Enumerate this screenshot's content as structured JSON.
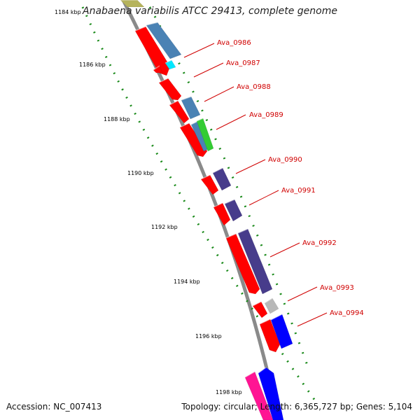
{
  "title": "Anabaena variabilis ATCC 29413, complete genome",
  "accession_text": "Accession: NC_007413",
  "topology_text": "Topology: circular; Length: 6,365,727 bp; Genes: 5,104",
  "colors": {
    "backbone": "#8a8a8a",
    "ticks": "#1a8a1a",
    "label": "#d00000",
    "red": "#ff0000",
    "steel": "#4a82b4",
    "cyan": "#00e8ff",
    "green": "#33cc33",
    "purple": "#473c8b",
    "gray": "#b8b8b8",
    "blue": "#0000ff",
    "pink": "#ff1493",
    "olive": "#b5b35c"
  },
  "scale_labels": [
    "1184 kbp",
    "1186 kbp",
    "1188 kbp",
    "1190 kbp",
    "1192 kbp",
    "1194 kbp",
    "1196 kbp",
    "1198 kbp"
  ],
  "gene_labels": [
    "Ava_0986",
    "Ava_0987",
    "Ava_0988",
    "Ava_0989",
    "Ava_0990",
    "Ava_0991",
    "Ava_0992",
    "Ava_0993",
    "Ava_0994"
  ],
  "features": [
    {
      "color": "olive"
    },
    {
      "color": "red"
    },
    {
      "color": "steel"
    },
    {
      "color": "red"
    },
    {
      "color": "cyan"
    },
    {
      "color": "red"
    },
    {
      "color": "red"
    },
    {
      "color": "steel"
    },
    {
      "color": "red"
    },
    {
      "color": "steel"
    },
    {
      "color": "green"
    },
    {
      "color": "red"
    },
    {
      "color": "purple"
    },
    {
      "color": "red"
    },
    {
      "color": "purple"
    },
    {
      "color": "red"
    },
    {
      "color": "purple"
    },
    {
      "color": "red"
    },
    {
      "color": "gray"
    },
    {
      "color": "red"
    },
    {
      "color": "blue"
    },
    {
      "color": "pink"
    },
    {
      "color": "blue"
    }
  ]
}
